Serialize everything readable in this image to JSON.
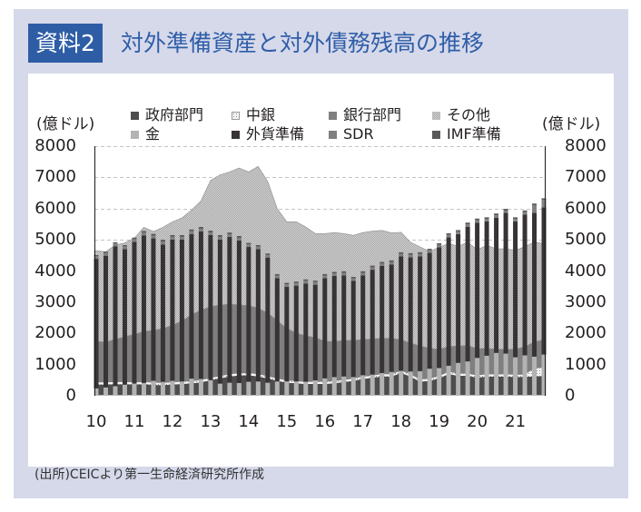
{
  "header": {
    "badge": "資料2",
    "title": "対外準備資産と対外債務残高の推移"
  },
  "footer": {
    "source": "(出所)CEICより第一生命経済研究所作成"
  },
  "chart_data": {
    "type": "bar+area",
    "title": "対外準備資産と対外債務残高の推移",
    "ylabel_left": "(億ドル)",
    "ylabel_right": "(億ドル)",
    "ylim": [
      0,
      8000
    ],
    "y_ticks": [
      0,
      1000,
      2000,
      3000,
      4000,
      5000,
      6000,
      7000,
      8000
    ],
    "x_tick_labels": [
      "10",
      "11",
      "12",
      "13",
      "14",
      "15",
      "16",
      "17",
      "18",
      "19",
      "20",
      "21"
    ],
    "grid": true,
    "legend_position": "top",
    "area_series": [
      {
        "name": "政府部門",
        "color": "#4d4d4d",
        "values": [
          360,
          360,
          370,
          370,
          360,
          370,
          350,
          340,
          360,
          380,
          400,
          430,
          500,
          560,
          620,
          650,
          660,
          620,
          560,
          480,
          420,
          400,
          380,
          380,
          380,
          400,
          440,
          480,
          540,
          580,
          620,
          620,
          730,
          620,
          450,
          480,
          560,
          700,
          640,
          640,
          580,
          620,
          610,
          620,
          600,
          610,
          620,
          640
        ]
      },
      {
        "name": "中銀",
        "color": "#ffffff",
        "values": [
          70,
          70,
          70,
          70,
          70,
          70,
          70,
          70,
          70,
          70,
          70,
          70,
          70,
          70,
          70,
          70,
          70,
          70,
          70,
          70,
          70,
          70,
          70,
          70,
          70,
          70,
          70,
          70,
          70,
          70,
          70,
          70,
          70,
          70,
          70,
          70,
          70,
          70,
          70,
          70,
          70,
          70,
          70,
          70,
          70,
          70,
          260,
          260
        ]
      },
      {
        "name": "銀行部門",
        "color": "#7f7f7f",
        "values": [
          1315,
          1295,
          1370,
          1460,
          1540,
          1625,
          1675,
          1750,
          1830,
          1950,
          2130,
          2245,
          2290,
          2280,
          2250,
          2190,
          2160,
          2125,
          2020,
          1870,
          1670,
          1545,
          1470,
          1420,
          1295,
          1275,
          1265,
          1225,
          1195,
          1175,
          1155,
          1155,
          1000,
          1000,
          1080,
          975,
          860,
          810,
          890,
          900,
          870,
          825,
          820,
          795,
          830,
          890,
          850,
          900
        ]
      },
      {
        "name": "その他",
        "color": "#bdbdbd",
        "values": [
          2905,
          2890,
          3020,
          3000,
          3080,
          3335,
          3170,
          3240,
          3315,
          3300,
          3350,
          3505,
          4040,
          4170,
          4235,
          4390,
          4285,
          4535,
          4220,
          3580,
          3415,
          3560,
          3490,
          3330,
          3455,
          3485,
          3425,
          3365,
          3425,
          3455,
          3455,
          3375,
          3440,
          3230,
          3170,
          3095,
          3270,
          3300,
          3190,
          3310,
          3160,
          3305,
          3210,
          3225,
          3160,
          3210,
          3200,
          3070
        ]
      }
    ],
    "bar_series": [
      {
        "name": "金",
        "color": "#b3b3b3",
        "values": [
          240,
          270,
          310,
          358,
          390,
          410,
          480,
          447,
          480,
          460,
          550,
          539,
          500,
          390,
          420,
          410,
          450,
          460,
          420,
          461,
          460,
          460,
          450,
          496,
          560,
          600,
          620,
          602,
          660,
          680,
          730,
          766,
          800,
          780,
          790,
          869,
          890,
          965,
          1055,
          1102,
          1215,
          1285,
          1375,
          1352,
          1235,
          1295,
          1255,
          1322
        ]
      },
      {
        "name": "外貨準備",
        "color": "#383334",
        "values": [
          4150,
          4220,
          4480,
          4342,
          4540,
          4730,
          4565,
          4403,
          4525,
          4545,
          4635,
          4726,
          4650,
          4620,
          4670,
          4570,
          4320,
          4240,
          4010,
          3309,
          3030,
          3070,
          3150,
          3064,
          3210,
          3240,
          3240,
          3078,
          3200,
          3360,
          3430,
          3444,
          3670,
          3660,
          3680,
          3711,
          3870,
          4115,
          4125,
          4318,
          4335,
          4305,
          4335,
          4508,
          4355,
          4515,
          4605,
          4713
        ]
      },
      {
        "name": "SDR",
        "color": "#808080",
        "values": [
          90,
          90,
          90,
          90,
          90,
          90,
          90,
          90,
          90,
          90,
          90,
          90,
          85,
          85,
          85,
          85,
          85,
          85,
          85,
          85,
          85,
          85,
          85,
          85,
          80,
          80,
          80,
          80,
          80,
          80,
          80,
          80,
          80,
          80,
          80,
          80,
          75,
          75,
          75,
          75,
          75,
          75,
          75,
          75,
          75,
          75,
          250,
          245
        ]
      },
      {
        "name": "IMF準備",
        "color": "#5a5a5a",
        "values": [
          30,
          40,
          40,
          40,
          50,
          50,
          55,
          60,
          55,
          55,
          55,
          55,
          55,
          55,
          55,
          55,
          45,
          45,
          45,
          45,
          45,
          45,
          45,
          45,
          50,
          50,
          50,
          50,
          50,
          50,
          50,
          50,
          50,
          50,
          50,
          50,
          55,
          55,
          55,
          55,
          55,
          55,
          55,
          55,
          55,
          55,
          50,
          50
        ]
      }
    ]
  }
}
